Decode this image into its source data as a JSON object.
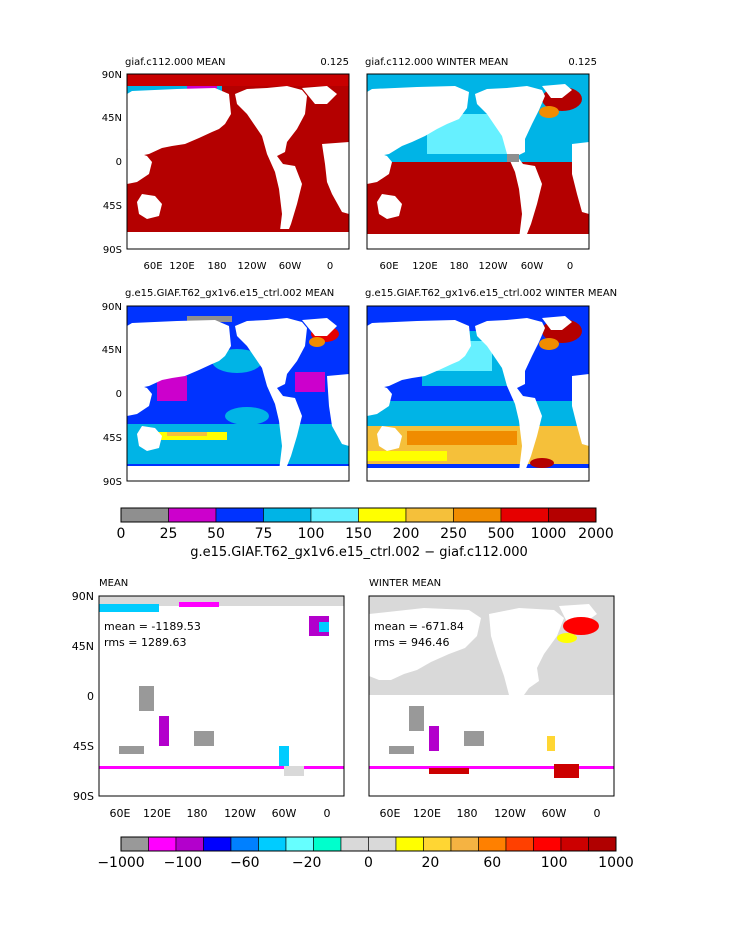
{
  "colors": {
    "c0": "#8f8f8f",
    "c1": "#cc00cc",
    "c2": "#0033ff",
    "c3": "#00b4e6",
    "c4": "#66f0ff",
    "c5": "#ffff00",
    "c6": "#f5c03a",
    "c7": "#f08c00",
    "c8": "#e60000",
    "c9": "#b40000",
    "land": "#ffffff",
    "diff_neg": "#8f8f8f",
    "diff_zero": "#d3d3d3",
    "diff_pos": "#ff1a00"
  },
  "top_panels": {
    "p1": {
      "title": "giaf.c112.000 MEAN",
      "right_label": "0.125"
    },
    "p2": {
      "title": "giaf.c112.000 WINTER MEAN",
      "right_label": "0.125"
    },
    "p3": {
      "title": "g.e15.GIAF.T62_gx1v6.e15_ctrl.002 MEAN"
    },
    "p4": {
      "title": "g.e15.GIAF.T62_gx1v6.e15_ctrl.002 WINTER MEAN"
    }
  },
  "lat_labels": [
    "90N",
    "45N",
    "0",
    "45S",
    "90S"
  ],
  "lon_labels": [
    "60E",
    "120E",
    "180",
    "120W",
    "60W",
    "0"
  ],
  "colorbar1": {
    "labels": [
      "0",
      "25",
      "50",
      "75",
      "100",
      "150",
      "200",
      "250",
      "500",
      "1000",
      "2000"
    ],
    "colors": [
      "#8f8f8f",
      "#cc00cc",
      "#0033ff",
      "#00b4e6",
      "#66f0ff",
      "#ffff00",
      "#f5c03a",
      "#f08c00",
      "#e60000",
      "#b40000"
    ],
    "caption": "g.e15.GIAF.T62_gx1v6.e15_ctrl.002 − giaf.c112.000"
  },
  "diff_panels": {
    "p5": {
      "title": "MEAN",
      "mean_text": "mean = -1189.53",
      "rms_text": "rms = 1289.63"
    },
    "p6": {
      "title": "WINTER MEAN",
      "mean_text": "mean = -671.84",
      "rms_text": "rms = 946.46"
    }
  },
  "colorbar2": {
    "labels": [
      "−1000",
      "−100",
      "−60",
      "−20",
      "0",
      "20",
      "60",
      "100",
      "1000"
    ],
    "colors": [
      "#999999",
      "#ff00ff",
      "#b300cc",
      "#0000ff",
      "#0080ff",
      "#00ccff",
      "#66ffff",
      "#00ffcc",
      "#d9d9d9",
      "#d9d9d9",
      "#ffff00",
      "#ffd633",
      "#f5b342",
      "#ff8000",
      "#ff4000",
      "#ff0000",
      "#cc0000",
      "#b00000"
    ]
  }
}
